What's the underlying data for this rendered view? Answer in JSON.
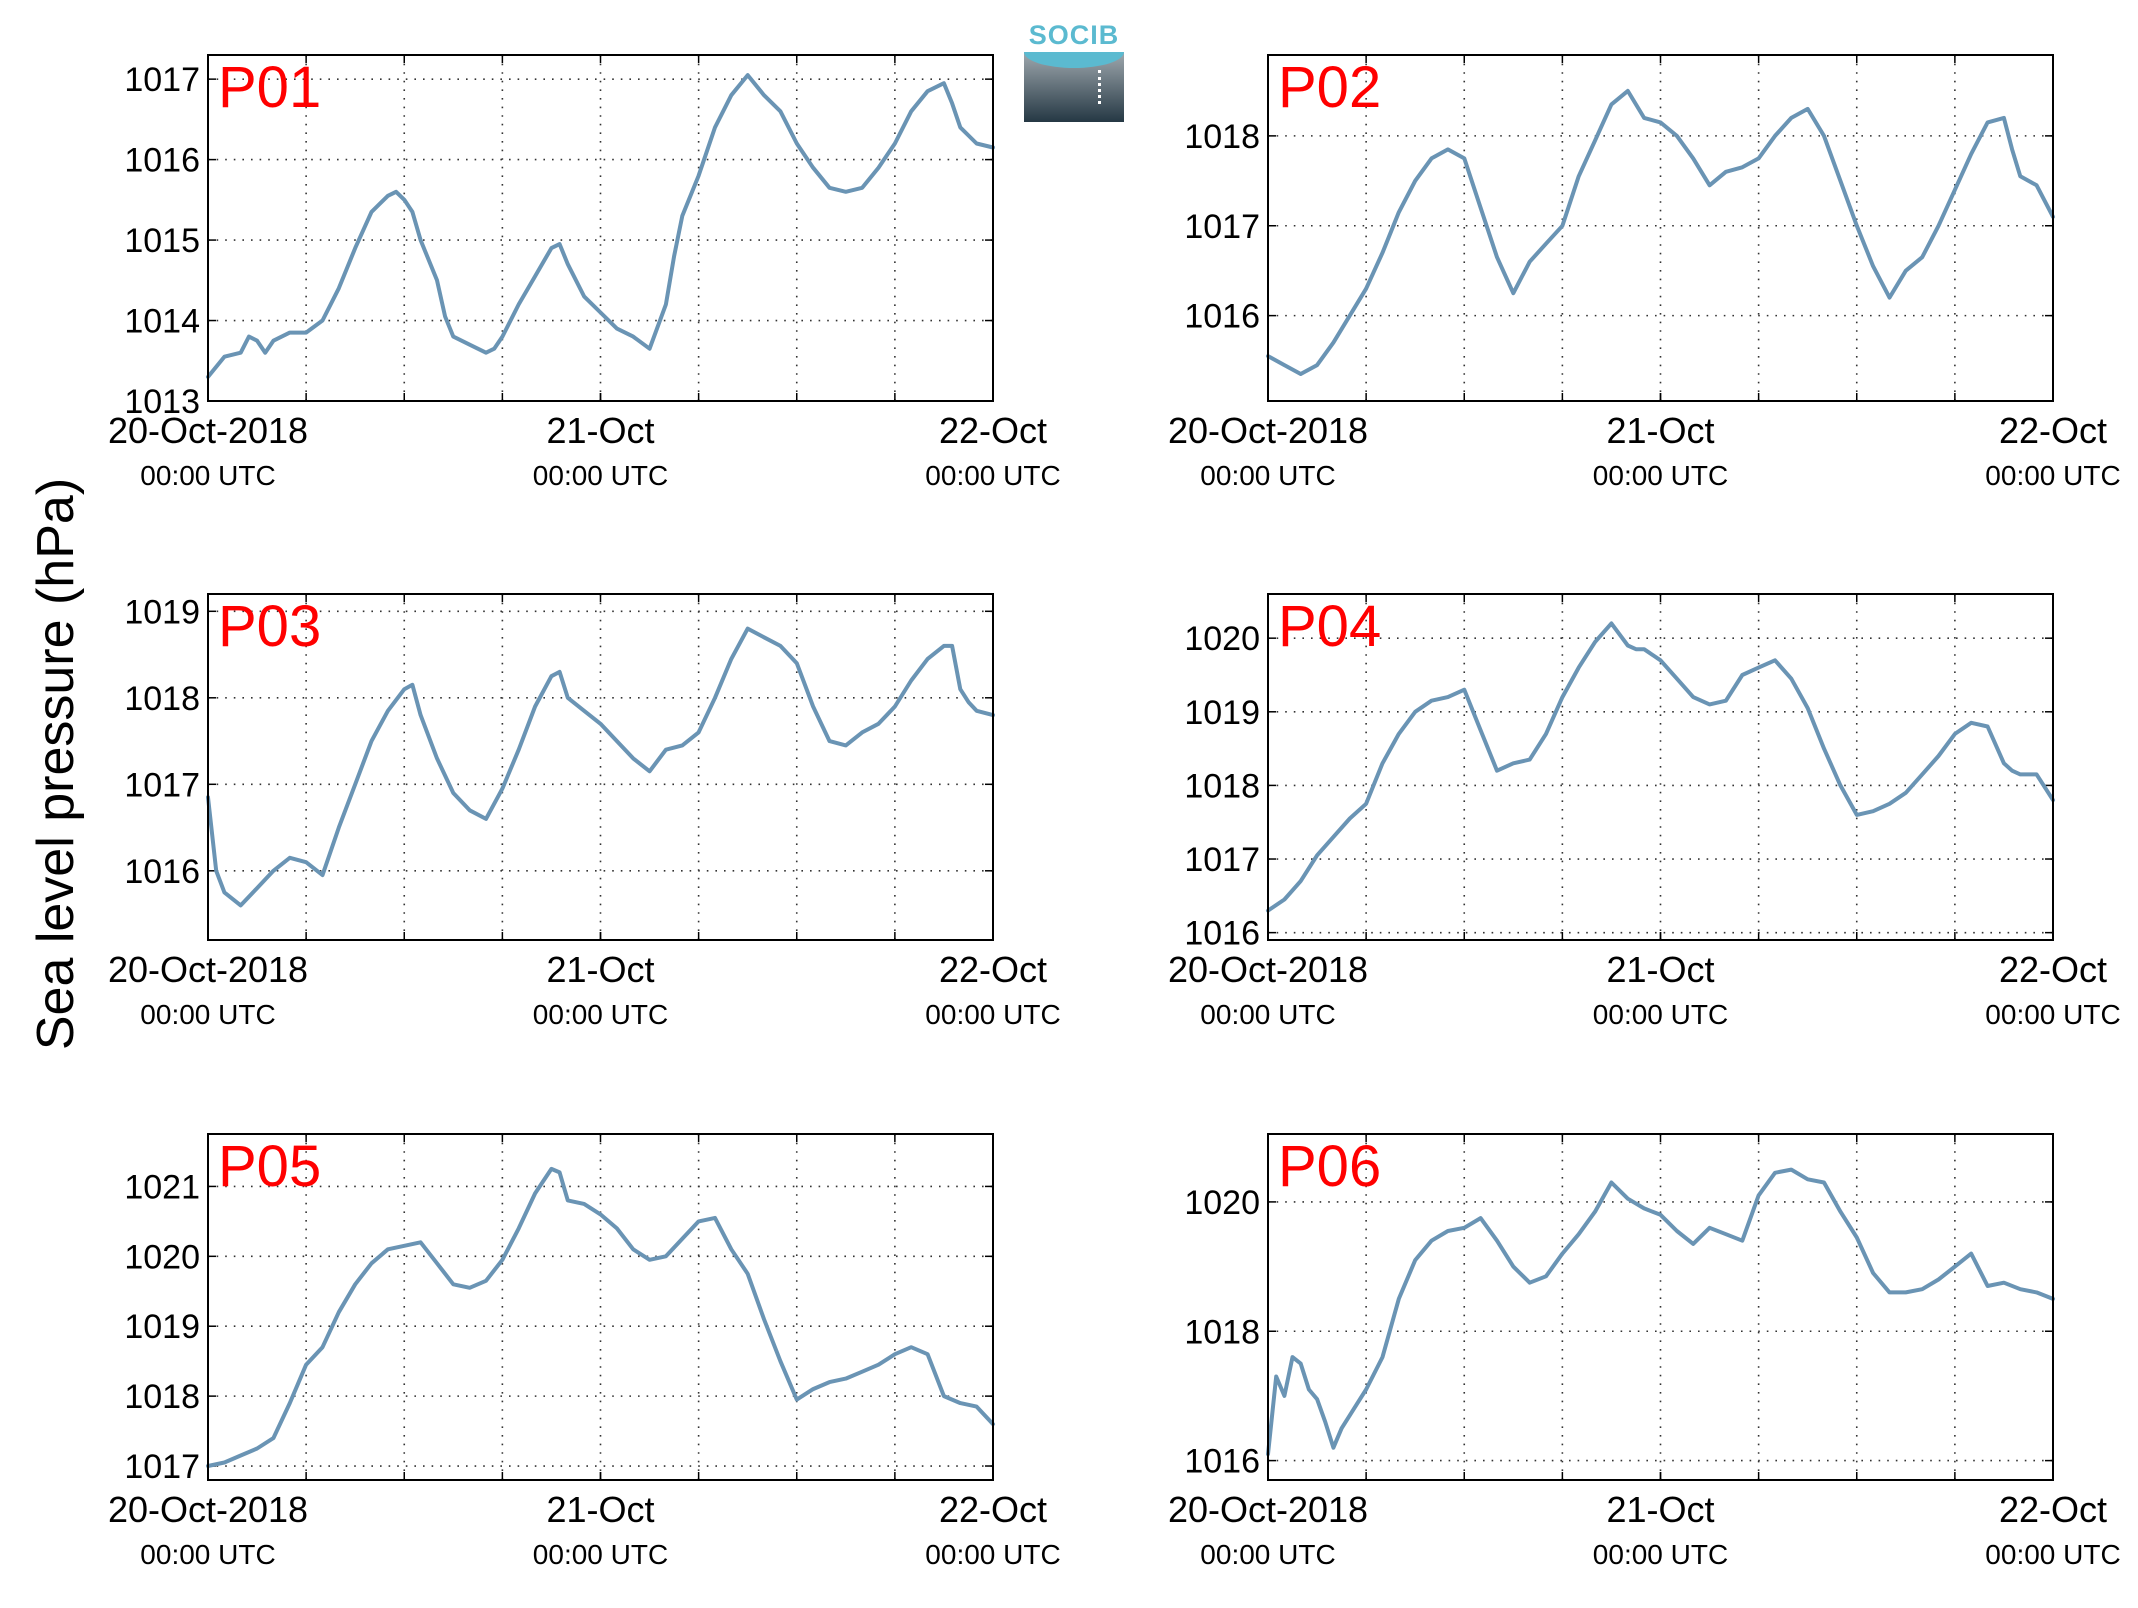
{
  "figure": {
    "ylabel": "Sea level pressure (hPa)",
    "logo_text": "SOCIB",
    "line_color": "#6a94b4",
    "panel_label_color": "#ff0000"
  },
  "chart_data": [
    {
      "type": "line",
      "panel": "P01",
      "xlim": [
        0,
        48
      ],
      "xtick_hours": [
        0,
        24,
        48
      ],
      "xtick_labels": [
        [
          "20-Oct-2018",
          "00:00 UTC"
        ],
        [
          "21-Oct",
          "00:00 UTC"
        ],
        [
          "22-Oct",
          "00:00 UTC"
        ]
      ],
      "ylim": [
        1013,
        1017.3
      ],
      "yticks": [
        1013,
        1014,
        1015,
        1016,
        1017
      ],
      "grid": true,
      "x_hours": [
        0,
        1,
        2,
        2.5,
        3,
        3.5,
        4,
        5,
        6,
        7,
        8,
        9,
        10,
        11,
        11.5,
        12,
        12.5,
        13,
        14,
        14.5,
        15,
        16,
        17,
        17.5,
        18,
        19,
        20,
        21,
        21.5,
        22,
        23,
        24,
        25,
        26,
        27,
        28,
        28.5,
        29,
        30,
        31,
        32,
        33,
        34,
        35,
        36,
        37,
        38,
        39,
        40,
        41,
        42,
        43,
        44,
        45,
        45.5,
        46,
        46.5,
        47,
        48
      ],
      "values": [
        1013.3,
        1013.55,
        1013.6,
        1013.8,
        1013.75,
        1013.6,
        1013.75,
        1013.85,
        1013.85,
        1014.0,
        1014.4,
        1014.9,
        1015.35,
        1015.55,
        1015.6,
        1015.5,
        1015.35,
        1015.0,
        1014.5,
        1014.05,
        1013.8,
        1013.7,
        1013.6,
        1013.65,
        1013.8,
        1014.2,
        1014.55,
        1014.9,
        1014.95,
        1014.7,
        1014.3,
        1014.1,
        1013.9,
        1013.8,
        1013.65,
        1014.2,
        1014.8,
        1015.3,
        1015.8,
        1016.4,
        1016.8,
        1017.05,
        1016.8,
        1016.6,
        1016.2,
        1015.9,
        1015.65,
        1015.6,
        1015.65,
        1015.9,
        1016.2,
        1016.6,
        1016.85,
        1016.95,
        1016.7,
        1016.4,
        1016.3,
        1016.2,
        1016.15
      ]
    },
    {
      "type": "line",
      "panel": "P02",
      "xlim": [
        0,
        48
      ],
      "xtick_hours": [
        0,
        24,
        48
      ],
      "xtick_labels": [
        [
          "20-Oct-2018",
          "00:00 UTC"
        ],
        [
          "21-Oct",
          "00:00 UTC"
        ],
        [
          "22-Oct",
          "00:00 UTC"
        ]
      ],
      "ylim": [
        1015.05,
        1018.9
      ],
      "yticks": [
        1016,
        1017,
        1018
      ],
      "grid": true,
      "x_hours": [
        0,
        1,
        2,
        3,
        4,
        5,
        6,
        7,
        8,
        9,
        10,
        11,
        12,
        13,
        14,
        15,
        16,
        17,
        18,
        19,
        20,
        21,
        22,
        23,
        24,
        25,
        26,
        27,
        28,
        29,
        30,
        31,
        32,
        33,
        34,
        35,
        36,
        37,
        38,
        39,
        40,
        41,
        42,
        43,
        44,
        45,
        45.5,
        46,
        47,
        48
      ],
      "values": [
        1015.55,
        1015.45,
        1015.35,
        1015.45,
        1015.7,
        1016.0,
        1016.3,
        1016.7,
        1017.15,
        1017.5,
        1017.75,
        1017.85,
        1017.75,
        1017.2,
        1016.65,
        1016.25,
        1016.6,
        1016.8,
        1017.0,
        1017.55,
        1017.95,
        1018.35,
        1018.5,
        1018.2,
        1018.15,
        1018.0,
        1017.75,
        1017.45,
        1017.6,
        1017.65,
        1017.75,
        1018.0,
        1018.2,
        1018.3,
        1018.0,
        1017.5,
        1017.0,
        1016.55,
        1016.2,
        1016.5,
        1016.65,
        1017.0,
        1017.4,
        1017.8,
        1018.15,
        1018.2,
        1017.85,
        1017.55,
        1017.45,
        1017.1
      ]
    },
    {
      "type": "line",
      "panel": "P03",
      "xlim": [
        0,
        48
      ],
      "xtick_hours": [
        0,
        24,
        48
      ],
      "xtick_labels": [
        [
          "20-Oct-2018",
          "00:00 UTC"
        ],
        [
          "21-Oct",
          "00:00 UTC"
        ],
        [
          "22-Oct",
          "00:00 UTC"
        ]
      ],
      "ylim": [
        1015.2,
        1019.2
      ],
      "yticks": [
        1016,
        1017,
        1018,
        1019
      ],
      "grid": true,
      "x_hours": [
        0,
        0.5,
        1,
        2,
        3,
        4,
        5,
        6,
        7,
        8,
        9,
        10,
        11,
        12,
        12.5,
        13,
        14,
        15,
        16,
        17,
        18,
        19,
        20,
        21,
        21.5,
        22,
        23,
        24,
        25,
        26,
        27,
        28,
        29,
        30,
        31,
        32,
        33,
        34,
        35,
        36,
        37,
        38,
        39,
        40,
        41,
        42,
        43,
        44,
        45,
        45.5,
        46,
        46.5,
        47,
        48
      ],
      "values": [
        1016.85,
        1016.0,
        1015.75,
        1015.6,
        1015.8,
        1016.0,
        1016.15,
        1016.1,
        1015.95,
        1016.5,
        1017.0,
        1017.5,
        1017.85,
        1018.1,
        1018.15,
        1017.8,
        1017.3,
        1016.9,
        1016.7,
        1016.6,
        1016.95,
        1017.4,
        1017.9,
        1018.25,
        1018.3,
        1018.0,
        1017.85,
        1017.7,
        1017.5,
        1017.3,
        1017.15,
        1017.4,
        1017.45,
        1017.6,
        1018.0,
        1018.45,
        1018.8,
        1018.7,
        1018.6,
        1018.4,
        1017.9,
        1017.5,
        1017.45,
        1017.6,
        1017.7,
        1017.9,
        1018.2,
        1018.45,
        1018.6,
        1018.6,
        1018.1,
        1017.95,
        1017.85,
        1017.8
      ]
    },
    {
      "type": "line",
      "panel": "P04",
      "xlim": [
        0,
        48
      ],
      "xtick_hours": [
        0,
        24,
        48
      ],
      "xtick_labels": [
        [
          "20-Oct-2018",
          "00:00 UTC"
        ],
        [
          "21-Oct",
          "00:00 UTC"
        ],
        [
          "22-Oct",
          "00:00 UTC"
        ]
      ],
      "ylim": [
        1015.9,
        1020.6
      ],
      "yticks": [
        1016,
        1017,
        1018,
        1019,
        1020
      ],
      "grid": true,
      "x_hours": [
        0,
        1,
        2,
        3,
        4,
        5,
        6,
        7,
        8,
        9,
        10,
        11,
        12,
        13,
        14,
        15,
        16,
        17,
        18,
        19,
        20,
        21,
        22,
        22.5,
        23,
        24,
        25,
        26,
        27,
        28,
        29,
        30,
        31,
        32,
        33,
        34,
        35,
        36,
        37,
        38,
        39,
        40,
        41,
        42,
        43,
        44,
        45,
        45.5,
        46,
        47,
        48
      ],
      "values": [
        1016.3,
        1016.45,
        1016.7,
        1017.05,
        1017.3,
        1017.55,
        1017.75,
        1018.3,
        1018.7,
        1019.0,
        1019.15,
        1019.2,
        1019.3,
        1018.75,
        1018.2,
        1018.3,
        1018.35,
        1018.7,
        1019.2,
        1019.6,
        1019.95,
        1020.2,
        1019.9,
        1019.85,
        1019.85,
        1019.7,
        1019.45,
        1019.2,
        1019.1,
        1019.15,
        1019.5,
        1019.6,
        1019.7,
        1019.45,
        1019.05,
        1018.5,
        1018.0,
        1017.6,
        1017.65,
        1017.75,
        1017.9,
        1018.15,
        1018.4,
        1018.7,
        1018.85,
        1018.8,
        1018.3,
        1018.2,
        1018.15,
        1018.15,
        1017.8
      ]
    },
    {
      "type": "line",
      "panel": "P05",
      "xlim": [
        0,
        48
      ],
      "xtick_hours": [
        0,
        24,
        48
      ],
      "xtick_labels": [
        [
          "20-Oct-2018",
          "00:00 UTC"
        ],
        [
          "21-Oct",
          "00:00 UTC"
        ],
        [
          "22-Oct",
          "00:00 UTC"
        ]
      ],
      "ylim": [
        1016.8,
        1021.75
      ],
      "yticks": [
        1017,
        1018,
        1019,
        1020,
        1021
      ],
      "grid": true,
      "x_hours": [
        0,
        1,
        2,
        3,
        4,
        5,
        6,
        7,
        8,
        9,
        10,
        11,
        12,
        13,
        14,
        15,
        16,
        17,
        18,
        19,
        20,
        21,
        21.5,
        22,
        23,
        24,
        25,
        26,
        27,
        28,
        29,
        30,
        31,
        32,
        33,
        34,
        35,
        36,
        37,
        38,
        39,
        40,
        41,
        42,
        43,
        44,
        45,
        45.5,
        46,
        47,
        48
      ],
      "values": [
        1017.0,
        1017.05,
        1017.15,
        1017.25,
        1017.4,
        1017.9,
        1018.45,
        1018.7,
        1019.2,
        1019.6,
        1019.9,
        1020.1,
        1020.15,
        1020.2,
        1019.9,
        1019.6,
        1019.55,
        1019.65,
        1019.95,
        1020.4,
        1020.9,
        1021.25,
        1021.2,
        1020.8,
        1020.75,
        1020.6,
        1020.4,
        1020.1,
        1019.95,
        1020.0,
        1020.25,
        1020.5,
        1020.55,
        1020.1,
        1019.75,
        1019.1,
        1018.5,
        1017.95,
        1018.1,
        1018.2,
        1018.25,
        1018.35,
        1018.45,
        1018.6,
        1018.7,
        1018.6,
        1018.0,
        1017.95,
        1017.9,
        1017.85,
        1017.6
      ]
    },
    {
      "type": "line",
      "panel": "P06",
      "xlim": [
        0,
        48
      ],
      "xtick_hours": [
        0,
        24,
        48
      ],
      "xtick_labels": [
        [
          "20-Oct-2018",
          "00:00 UTC"
        ],
        [
          "21-Oct",
          "00:00 UTC"
        ],
        [
          "22-Oct",
          "00:00 UTC"
        ]
      ],
      "ylim": [
        1015.7,
        1021.05
      ],
      "yticks": [
        1016,
        1018,
        1020
      ],
      "grid": true,
      "x_hours": [
        0,
        0.5,
        1,
        1.5,
        2,
        2.5,
        3,
        3.5,
        4,
        4.5,
        5,
        5.5,
        6,
        7,
        8,
        9,
        10,
        11,
        12,
        13,
        14,
        15,
        16,
        17,
        18,
        19,
        20,
        21,
        22,
        23,
        24,
        25,
        26,
        27,
        28,
        29,
        30,
        31,
        32,
        33,
        34,
        35,
        36,
        37,
        38,
        39,
        40,
        41,
        42,
        43,
        44,
        45,
        46,
        47,
        48
      ],
      "values": [
        1016.1,
        1017.3,
        1017.0,
        1017.6,
        1017.5,
        1017.1,
        1016.95,
        1016.6,
        1016.2,
        1016.5,
        1016.7,
        1016.9,
        1017.1,
        1017.6,
        1018.5,
        1019.1,
        1019.4,
        1019.55,
        1019.6,
        1019.75,
        1019.4,
        1019.0,
        1018.75,
        1018.85,
        1019.2,
        1019.5,
        1019.85,
        1020.3,
        1020.05,
        1019.9,
        1019.8,
        1019.55,
        1019.35,
        1019.6,
        1019.5,
        1019.4,
        1020.1,
        1020.45,
        1020.5,
        1020.35,
        1020.3,
        1019.85,
        1019.45,
        1018.9,
        1018.6,
        1018.6,
        1018.65,
        1018.8,
        1019.0,
        1019.2,
        1018.7,
        1018.75,
        1018.65,
        1018.6,
        1018.5
      ]
    }
  ]
}
